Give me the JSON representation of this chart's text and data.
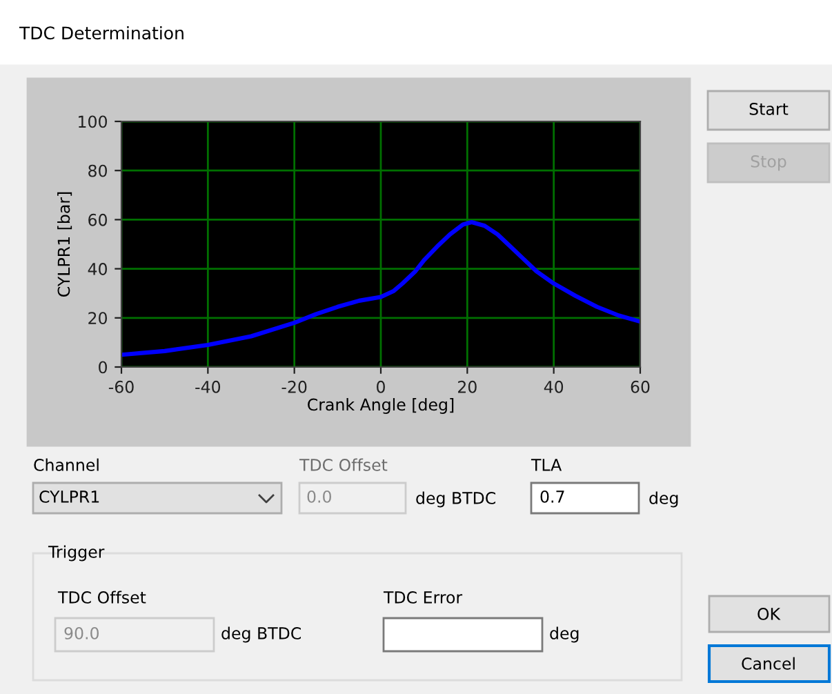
{
  "chart_data": [
    {
      "type": "line",
      "xlabel": "Crank Angle [deg]",
      "ylabel": "CYLPR1 [bar]",
      "xlim": [
        -60,
        60
      ],
      "ylim": [
        0,
        100
      ],
      "xticks": [
        -60,
        -40,
        -20,
        0,
        20,
        40,
        60
      ],
      "yticks": [
        0,
        20,
        40,
        60,
        80,
        100
      ],
      "grid": true,
      "x": [
        -60,
        -50,
        -40,
        -30,
        -20,
        -15,
        -10,
        -5,
        0,
        3,
        5,
        8,
        10,
        13,
        16,
        19,
        21,
        24,
        27,
        30,
        33,
        36,
        40,
        45,
        50,
        55,
        60
      ],
      "series": [
        {
          "color": "#0000ff",
          "values": [
            5,
            6.5,
            9,
            12.5,
            18,
            21.5,
            24.5,
            27,
            28.5,
            31,
            34,
            39,
            43.5,
            49,
            54,
            58,
            59,
            57.5,
            54,
            49,
            44,
            39,
            34,
            29,
            24.5,
            21,
            18.5
          ]
        }
      ]
    },
    {
      "type": "other",
      "title": "TDC Determination",
      "annotations": [
        "Start",
        "Stop",
        "Channel",
        "CYLPR1",
        "TDC Offset",
        "0.0",
        "deg BTDC",
        "TLA",
        "0.7",
        "deg",
        "Trigger",
        "TDC Offset",
        "90.0",
        "deg BTDC",
        "TDC Error",
        "deg",
        "OK",
        "Cancel"
      ]
    }
  ]
}
